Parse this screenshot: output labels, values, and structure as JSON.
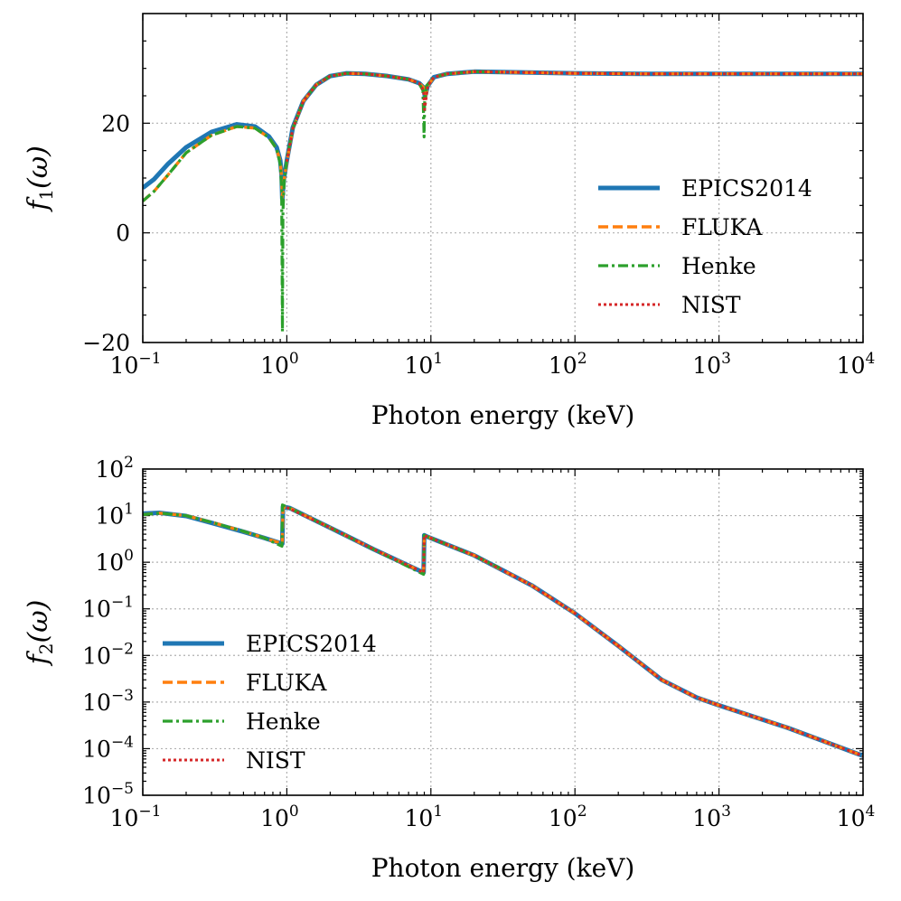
{
  "chart_data": [
    {
      "type": "line",
      "id": "top",
      "xscale": "log",
      "yscale": "linear",
      "xlim": [
        0.1,
        10000
      ],
      "ylim": [
        -20,
        40
      ],
      "xlabel": "Photon energy (keV)",
      "ylabel_main": "f",
      "ylabel_sub": "1",
      "ylabel_arg": "(ω)",
      "x_ticks": [
        {
          "base": "10",
          "exp": "−1",
          "value": 0.1
        },
        {
          "base": "10",
          "exp": "0",
          "value": 1
        },
        {
          "base": "10",
          "exp": "1",
          "value": 10
        },
        {
          "base": "10",
          "exp": "2",
          "value": 100
        },
        {
          "base": "10",
          "exp": "3",
          "value": 1000
        },
        {
          "base": "10",
          "exp": "4",
          "value": 10000
        }
      ],
      "y_ticks": [
        {
          "label": "−20",
          "value": -20
        },
        {
          "label": "0",
          "value": 0
        },
        {
          "label": "20",
          "value": 20
        }
      ],
      "legend": {
        "position": "center-right",
        "entries": [
          "EPICS2014",
          "FLUKA",
          "Henke",
          "NIST"
        ]
      },
      "series": [
        {
          "name": "EPICS2014",
          "color": "#1f77b4",
          "style": "solid",
          "x": [
            0.1,
            0.12,
            0.15,
            0.2,
            0.3,
            0.45,
            0.6,
            0.75,
            0.85,
            0.9,
            0.92,
            0.93,
            0.95,
            1.0,
            1.1,
            1.3,
            1.6,
            2,
            2.6,
            3.5,
            5,
            7,
            8.3,
            8.9,
            9.1,
            9.5,
            10.5,
            13,
            20,
            35,
            100,
            300,
            1000,
            10000
          ],
          "values": [
            8.2,
            9.8,
            12.6,
            15.6,
            18.4,
            19.8,
            19.4,
            17.6,
            15.6,
            13.2,
            10.5,
            6.2,
            9.5,
            13.2,
            19.2,
            24.0,
            27.0,
            28.6,
            29.1,
            29.0,
            28.6,
            28.0,
            27.3,
            26.5,
            24.8,
            26.8,
            28.4,
            29.0,
            29.4,
            29.3,
            29.1,
            29.0,
            29.0,
            29.0
          ]
        },
        {
          "name": "FLUKA",
          "color": "#ff7f0e",
          "style": "dashed",
          "x": [
            0.1,
            0.12,
            0.15,
            0.2,
            0.3,
            0.45,
            0.6,
            0.75,
            0.85,
            0.9,
            0.92,
            0.93,
            0.95,
            1.0,
            1.1,
            1.3,
            1.6,
            2,
            2.6,
            3.5,
            5,
            7,
            8.3,
            8.9,
            9.1,
            9.5,
            10.5,
            13,
            20,
            35,
            100,
            300,
            1000,
            10000
          ],
          "values": [
            5.8,
            7.6,
            10.6,
            14.6,
            17.8,
            19.4,
            19.1,
            17.4,
            15.3,
            13.0,
            10.0,
            6.5,
            9.0,
            13.0,
            19.0,
            24.0,
            27.0,
            28.6,
            29.1,
            29.0,
            28.6,
            28.0,
            27.3,
            26.5,
            24.5,
            26.8,
            28.4,
            29.0,
            29.4,
            29.3,
            29.1,
            29.0,
            29.0,
            29.0
          ]
        },
        {
          "name": "Henke",
          "color": "#2ca02c",
          "style": "dashdot",
          "x": [
            0.1,
            0.12,
            0.15,
            0.2,
            0.3,
            0.45,
            0.6,
            0.75,
            0.85,
            0.9,
            0.92,
            0.932,
            0.94,
            0.96,
            1.0,
            1.1,
            1.3,
            1.6,
            2,
            2.6,
            3.5,
            5,
            7,
            8.3,
            8.8,
            8.97,
            9.05,
            9.3,
            10.5,
            13,
            20,
            30
          ],
          "values": [
            5.8,
            7.6,
            10.6,
            14.6,
            17.8,
            19.4,
            19.1,
            17.4,
            15.3,
            12.5,
            8.0,
            -18.0,
            4.0,
            9.5,
            13.5,
            19.0,
            24.0,
            27.0,
            28.6,
            29.1,
            29.0,
            28.6,
            28.0,
            27.2,
            26.0,
            17.5,
            24.0,
            26.8,
            28.4,
            29.0,
            29.4,
            29.3
          ]
        },
        {
          "name": "NIST",
          "color": "#d62728",
          "style": "dotted",
          "x": [
            1.0,
            1.1,
            1.3,
            1.6,
            2,
            2.6,
            3.5,
            5,
            7,
            8.3,
            8.9,
            9.05,
            9.5,
            10.5,
            13,
            20,
            35,
            100,
            300,
            1000,
            10000
          ],
          "values": [
            13.0,
            19.0,
            24.0,
            27.0,
            28.6,
            29.1,
            29.0,
            28.6,
            28.0,
            27.3,
            26.0,
            22.5,
            26.8,
            28.4,
            29.0,
            29.4,
            29.3,
            29.1,
            29.0,
            29.0,
            29.0
          ]
        }
      ]
    },
    {
      "type": "line",
      "id": "bottom",
      "xscale": "log",
      "yscale": "log",
      "xlim": [
        0.1,
        10000
      ],
      "ylim": [
        1e-05,
        100
      ],
      "xlabel": "Photon energy (keV)",
      "ylabel_main": "f",
      "ylabel_sub": "2",
      "ylabel_arg": "(ω)",
      "x_ticks": [
        {
          "base": "10",
          "exp": "−1",
          "value": 0.1
        },
        {
          "base": "10",
          "exp": "0",
          "value": 1
        },
        {
          "base": "10",
          "exp": "1",
          "value": 10
        },
        {
          "base": "10",
          "exp": "2",
          "value": 100
        },
        {
          "base": "10",
          "exp": "3",
          "value": 1000
        },
        {
          "base": "10",
          "exp": "4",
          "value": 10000
        }
      ],
      "y_ticks": [
        {
          "base": "10",
          "exp": "−5",
          "value": 1e-05
        },
        {
          "base": "10",
          "exp": "−4",
          "value": 0.0001
        },
        {
          "base": "10",
          "exp": "−3",
          "value": 0.001
        },
        {
          "base": "10",
          "exp": "−2",
          "value": 0.01
        },
        {
          "base": "10",
          "exp": "−1",
          "value": 0.1
        },
        {
          "base": "10",
          "exp": "0",
          "value": 1
        },
        {
          "base": "10",
          "exp": "1",
          "value": 10
        },
        {
          "base": "10",
          "exp": "2",
          "value": 100
        }
      ],
      "legend": {
        "position": "lower-left",
        "entries": [
          "EPICS2014",
          "FLUKA",
          "Henke",
          "NIST"
        ]
      },
      "series": [
        {
          "name": "EPICS2014",
          "color": "#1f77b4",
          "style": "solid",
          "x": [
            0.1,
            0.13,
            0.2,
            0.3,
            0.5,
            0.7,
            0.93,
            0.94,
            1.05,
            2,
            4,
            8.9,
            8.99,
            9.5,
            20,
            50,
            100,
            200,
            400,
            700,
            1000,
            3000,
            10000
          ],
          "values": [
            11,
            11.5,
            9.8,
            7.0,
            4.5,
            3.3,
            2.5,
            15.5,
            14.5,
            5.5,
            1.9,
            0.6,
            3.8,
            3.5,
            1.4,
            0.32,
            0.08,
            0.016,
            0.003,
            0.00125,
            0.00085,
            0.00028,
            7e-05
          ]
        },
        {
          "name": "FLUKA",
          "color": "#ff7f0e",
          "style": "dashed",
          "x": [
            0.1,
            0.13,
            0.2,
            0.3,
            0.5,
            0.7,
            0.93,
            0.94,
            1.05,
            2,
            4,
            8.9,
            8.99,
            9.5,
            20,
            50,
            100,
            200,
            400,
            700,
            1000,
            3000,
            10000
          ],
          "values": [
            10.5,
            11.3,
            10.0,
            7.2,
            4.6,
            3.3,
            2.5,
            15.5,
            14.5,
            5.5,
            1.9,
            0.6,
            3.8,
            3.5,
            1.4,
            0.32,
            0.08,
            0.016,
            0.003,
            0.00125,
            0.00085,
            0.00028,
            7e-05
          ]
        },
        {
          "name": "Henke",
          "color": "#2ca02c",
          "style": "dashdot",
          "x": [
            0.1,
            0.13,
            0.2,
            0.3,
            0.5,
            0.7,
            0.925,
            0.932,
            1.05,
            2,
            4,
            8.9,
            8.99,
            9.5,
            20,
            30
          ],
          "values": [
            10.5,
            11.3,
            10.0,
            7.2,
            4.6,
            3.3,
            2.2,
            17,
            14.5,
            5.5,
            1.9,
            0.55,
            3.8,
            3.5,
            1.4,
            0.75
          ]
        },
        {
          "name": "NIST",
          "color": "#d62728",
          "style": "dotted",
          "x": [
            1.0,
            2,
            4,
            8.9,
            8.99,
            9.5,
            20,
            50,
            100,
            200,
            400,
            700,
            1000,
            3000,
            10000
          ],
          "values": [
            15,
            5.5,
            1.9,
            0.6,
            3.8,
            3.5,
            1.4,
            0.32,
            0.08,
            0.016,
            0.003,
            0.00125,
            0.00085,
            0.00028,
            7e-05
          ]
        }
      ]
    }
  ]
}
